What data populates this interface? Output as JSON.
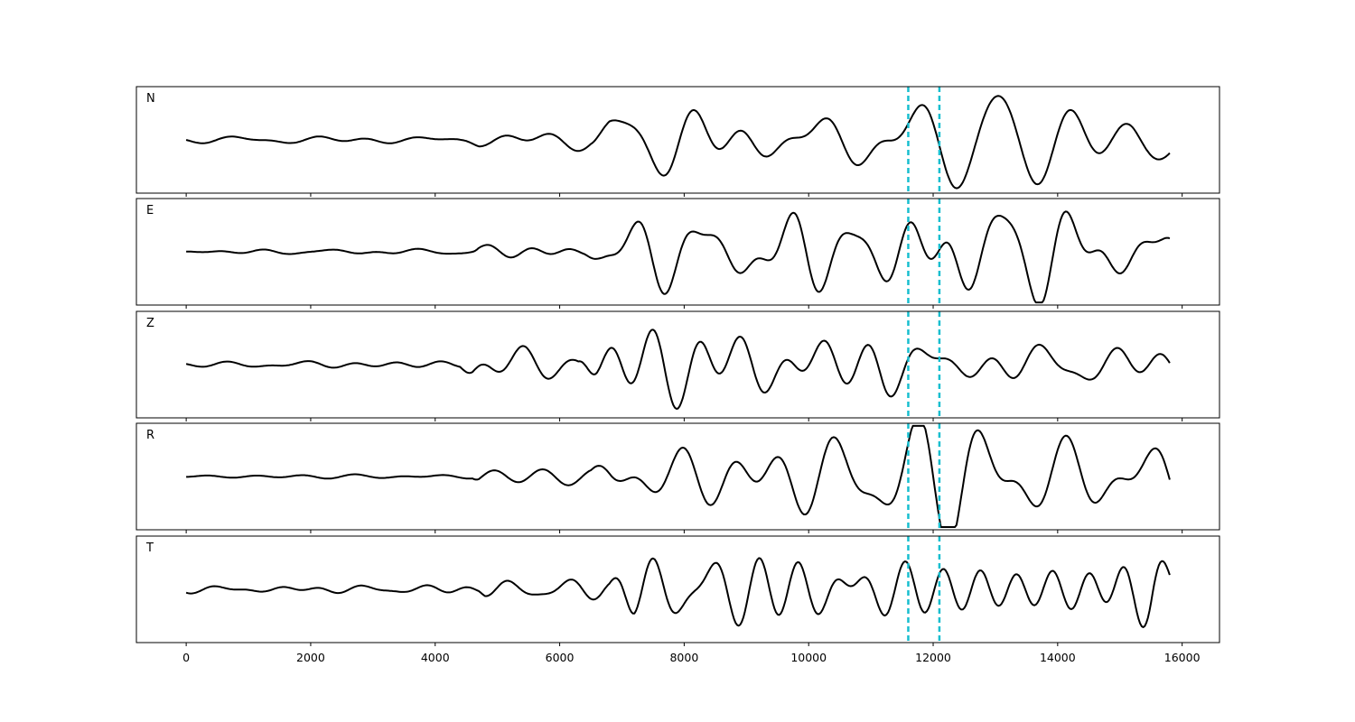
{
  "chart_data": {
    "type": "line",
    "title": "",
    "xlabel": "",
    "ylabel": "",
    "xlim": [
      -800,
      16600
    ],
    "x_ticks": [
      0,
      2000,
      4000,
      6000,
      8000,
      10000,
      12000,
      14000,
      16000
    ],
    "x_tick_labels": [
      "0",
      "2000",
      "4000",
      "6000",
      "8000",
      "10000",
      "12000",
      "14000",
      "16000"
    ],
    "x_end": 15800,
    "sample_step": 25,
    "vertical_markers": [
      11600,
      12100
    ],
    "marker_color": "#17becf",
    "trace_color": "#000000",
    "grid": false,
    "panels": [
      {
        "label": "N",
        "seed": 11,
        "ylim": [
          -1,
          1
        ],
        "envelope": [
          [
            0,
            0.05
          ],
          [
            4500,
            0.06
          ],
          [
            4700,
            0.12
          ],
          [
            6500,
            0.14
          ],
          [
            6800,
            0.35
          ],
          [
            7800,
            0.5
          ],
          [
            11500,
            0.62
          ],
          [
            13500,
            0.68
          ],
          [
            15200,
            0.75
          ],
          [
            15800,
            0.55
          ]
        ]
      },
      {
        "label": "E",
        "seed": 23,
        "ylim": [
          -1,
          1
        ],
        "envelope": [
          [
            0,
            0.04
          ],
          [
            4600,
            0.05
          ],
          [
            4700,
            0.14
          ],
          [
            6400,
            0.16
          ],
          [
            6700,
            0.5
          ],
          [
            9000,
            0.58
          ],
          [
            11000,
            0.7
          ],
          [
            12300,
            0.75
          ],
          [
            15800,
            0.55
          ]
        ]
      },
      {
        "label": "Z",
        "seed": 37,
        "ylim": [
          -1,
          1
        ],
        "envelope": [
          [
            0,
            0.04
          ],
          [
            4400,
            0.06
          ],
          [
            4600,
            0.28
          ],
          [
            5400,
            0.22
          ],
          [
            6300,
            0.12
          ],
          [
            6600,
            0.65
          ],
          [
            7000,
            0.75
          ],
          [
            9500,
            0.6
          ],
          [
            11200,
            0.8
          ],
          [
            12000,
            0.5
          ],
          [
            15800,
            0.45
          ]
        ]
      },
      {
        "label": "R",
        "seed": 53,
        "ylim": [
          -1,
          1
        ],
        "envelope": [
          [
            0,
            0.03
          ],
          [
            4600,
            0.05
          ],
          [
            4700,
            0.16
          ],
          [
            6500,
            0.18
          ],
          [
            6800,
            0.45
          ],
          [
            9500,
            0.55
          ],
          [
            11000,
            0.72
          ],
          [
            12400,
            0.75
          ],
          [
            15800,
            0.45
          ]
        ]
      },
      {
        "label": "T",
        "seed": 71,
        "ylim": [
          -1,
          1
        ],
        "envelope": [
          [
            0,
            0.05
          ],
          [
            4700,
            0.06
          ],
          [
            4800,
            0.12
          ],
          [
            6800,
            0.14
          ],
          [
            7200,
            0.48
          ],
          [
            11500,
            0.58
          ],
          [
            13500,
            0.65
          ],
          [
            15500,
            0.85
          ],
          [
            15800,
            0.45
          ]
        ]
      }
    ]
  }
}
